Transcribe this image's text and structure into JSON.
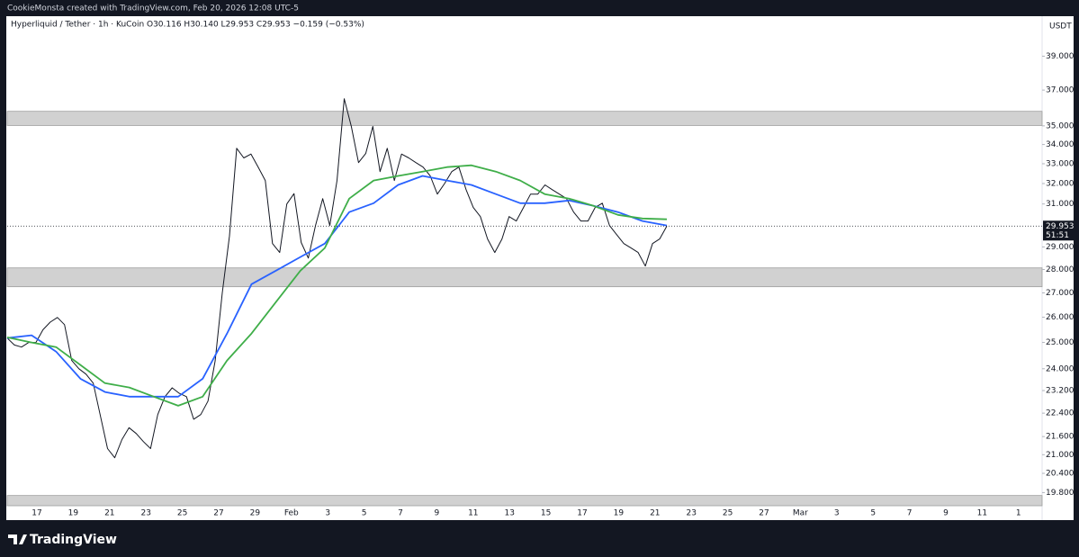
{
  "header": {
    "text": "CookieMonsta created with TradingView.com, Feb 20, 2026 12:08 UTC-5"
  },
  "chart_data": {
    "type": "line",
    "symbol": "Hyperliquid / Tether · 1h · KuCoin",
    "ohlc": "O30.116 H30.140 L29.953 C29.953 −0.159 (−0.53%)",
    "currency": "USDT",
    "last_price": {
      "value": 29.953,
      "label": "29.953"
    },
    "countdown": "51:51",
    "log_scale": true,
    "ylim": [
      19.4,
      41.5
    ],
    "yticks": [
      {
        "value": 39,
        "label": "39.000"
      },
      {
        "value": 37,
        "label": "37.000"
      },
      {
        "value": 35,
        "label": "35.000"
      },
      {
        "value": 34,
        "label": "34.000"
      },
      {
        "value": 33,
        "label": "33.000"
      },
      {
        "value": 32,
        "label": "32.000"
      },
      {
        "value": 31,
        "label": "31.000"
      },
      {
        "value": 29,
        "label": "29.000"
      },
      {
        "value": 28,
        "label": "28.000"
      },
      {
        "value": 27,
        "label": "27.000"
      },
      {
        "value": 26,
        "label": "26.000"
      },
      {
        "value": 25,
        "label": "25.000"
      },
      {
        "value": 24,
        "label": "24.000"
      },
      {
        "value": 23.2,
        "label": "23.200"
      },
      {
        "value": 22.4,
        "label": "22.400"
      },
      {
        "value": 21.6,
        "label": "21.600"
      },
      {
        "value": 21,
        "label": "21.000"
      },
      {
        "value": 20.4,
        "label": "20.400"
      },
      {
        "value": 19.8,
        "label": "19.800"
      }
    ],
    "xtick_labels": [
      "17",
      "19",
      "21",
      "23",
      "25",
      "27",
      "29",
      "Feb",
      "3",
      "5",
      "7",
      "9",
      "11",
      "13",
      "15",
      "17",
      "19",
      "21",
      "23",
      "25",
      "27",
      "Mar",
      "3",
      "5",
      "7",
      "9",
      "11",
      "1"
    ],
    "zones": [
      [
        35.02,
        35.8
      ],
      [
        27.26,
        28.07
      ],
      [
        19.4,
        19.71
      ]
    ],
    "series": [
      {
        "color": "#131722",
        "values": [
          25.17,
          24.9,
          24.82,
          25.0,
          25.0,
          25.5,
          25.8,
          25.99,
          25.7,
          24.31,
          24.0,
          23.8,
          23.47,
          22.3,
          21.2,
          20.9,
          21.5,
          21.9,
          21.7,
          21.43,
          21.2,
          22.35,
          22.98,
          23.3,
          23.1,
          22.98,
          22.19,
          22.35,
          22.82,
          24.3,
          27.0,
          29.5,
          33.8,
          33.3,
          33.5,
          32.83,
          32.15,
          29.15,
          28.75,
          31.0,
          31.5,
          29.2,
          28.5,
          29.98,
          31.26,
          29.98,
          32.15,
          36.5,
          34.97,
          33.06,
          33.53,
          34.97,
          32.6,
          33.8,
          32.15,
          33.5,
          33.3,
          33.06,
          32.83,
          32.38,
          31.48,
          32.0,
          32.6,
          32.83,
          31.7,
          30.83,
          30.4,
          29.36,
          28.75,
          29.36,
          30.4,
          30.19,
          30.83,
          31.48,
          31.48,
          31.93,
          31.7,
          31.48,
          31.26,
          30.61,
          30.19,
          30.19,
          30.83,
          31.04,
          29.98,
          29.56,
          29.15,
          28.95,
          28.75,
          28.15,
          29.15,
          29.36,
          29.953
        ]
      },
      {
        "color": "#2962ff",
        "values": [
          25.17,
          25.28,
          24.65,
          23.63,
          23.15,
          22.98,
          22.98,
          22.98,
          23.63,
          25.35,
          27.37,
          27.95,
          28.55,
          29.15,
          30.61,
          31.04,
          31.93,
          32.38,
          32.15,
          31.93,
          31.48,
          31.04,
          31.04,
          31.17,
          30.91,
          30.61,
          30.19,
          29.98
        ]
      },
      {
        "color": "#3fae49",
        "values": [
          25.2,
          25.0,
          24.82,
          24.14,
          23.47,
          23.31,
          22.98,
          22.66,
          22.98,
          24.31,
          25.35,
          26.62,
          27.95,
          28.95,
          31.26,
          32.15,
          32.38,
          32.6,
          32.83,
          32.92,
          32.6,
          32.15,
          31.48,
          31.26,
          30.91,
          30.48,
          30.31,
          30.27
        ]
      }
    ]
  },
  "footer": {
    "logo": "TradingView"
  }
}
